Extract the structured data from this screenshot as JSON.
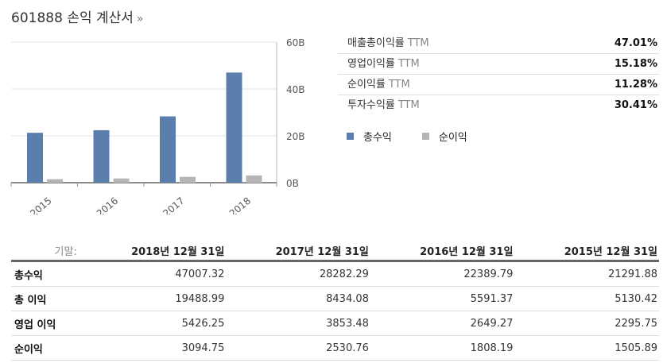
{
  "header": {
    "title": "601888 손익 계산서",
    "arrow": "»"
  },
  "chart_data": {
    "type": "bar",
    "categories": [
      "2015",
      "2016",
      "2017",
      "2018"
    ],
    "series": [
      {
        "name": "총수익",
        "values": [
          21.3,
          22.4,
          28.3,
          47.0
        ],
        "color": "#5b7fad"
      },
      {
        "name": "순이익",
        "values": [
          1.5,
          1.8,
          2.5,
          3.1
        ],
        "color": "#b5b5b5"
      }
    ],
    "ylim": [
      0,
      60
    ],
    "yticks": [
      0,
      20,
      40,
      60
    ],
    "ytick_labels": [
      "0B",
      "20B",
      "40B",
      "60B"
    ],
    "legend_position": "below-right"
  },
  "ratios": [
    {
      "label": "매출총이익률",
      "ttm": "TTM",
      "value": "47.01%"
    },
    {
      "label": "영업이익률",
      "ttm": "TTM",
      "value": "15.18%"
    },
    {
      "label": "순이익률",
      "ttm": "TTM",
      "value": "11.28%"
    },
    {
      "label": "투자수익률",
      "ttm": "TTM",
      "value": "30.41%"
    }
  ],
  "table": {
    "period_label": "기말:",
    "columns": [
      "2018년 12월 31일",
      "2017년 12월 31일",
      "2016년 12월 31일",
      "2015년 12월 31일"
    ],
    "rows": [
      {
        "label": "총수익",
        "values": [
          "47007.32",
          "28282.29",
          "22389.79",
          "21291.88"
        ]
      },
      {
        "label": "총 이익",
        "values": [
          "19488.99",
          "8434.08",
          "5591.37",
          "5130.42"
        ]
      },
      {
        "label": "영업 이익",
        "values": [
          "5426.25",
          "3853.48",
          "2649.27",
          "2295.75"
        ]
      },
      {
        "label": "순이익",
        "values": [
          "3094.75",
          "2530.76",
          "1808.19",
          "1505.89"
        ]
      }
    ]
  }
}
